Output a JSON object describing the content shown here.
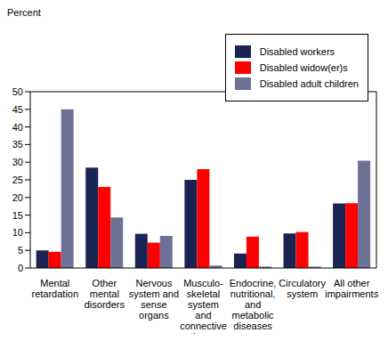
{
  "chart_data": {
    "type": "bar",
    "y_label": "Percent",
    "categories": [
      "Mental\nretardation",
      "Other\nmental\ndisorders",
      "Nervous\nsystem and\nsense\norgans",
      "Musculo-\nskeletal\nsystem\nand\nconnective\ntissue",
      "Endocrine,\nnutritional,\nand\nmetabolic\ndiseases",
      "Circulatory\nsystem",
      "All other\nimpairments"
    ],
    "series": [
      {
        "name": "Disabled workers",
        "color": "#1a2452",
        "values": [
          5,
          28.5,
          9.7,
          25,
          4.1,
          9.8,
          18.3
        ]
      },
      {
        "name": "Disabled widow(er)s",
        "color": "#ff0000",
        "values": [
          4.6,
          23,
          7.2,
          28,
          8.9,
          10.2,
          18.4
        ]
      },
      {
        "name": "Disabled adult children",
        "color": "#6e7196",
        "values": [
          45,
          14.3,
          9.1,
          0.7,
          0.4,
          0.4,
          30.4
        ]
      }
    ],
    "ylim": [
      0,
      50
    ],
    "yticks": [
      0,
      5,
      10,
      15,
      20,
      25,
      30,
      35,
      40,
      45,
      50
    ],
    "grid": false,
    "legend": "top-right"
  }
}
